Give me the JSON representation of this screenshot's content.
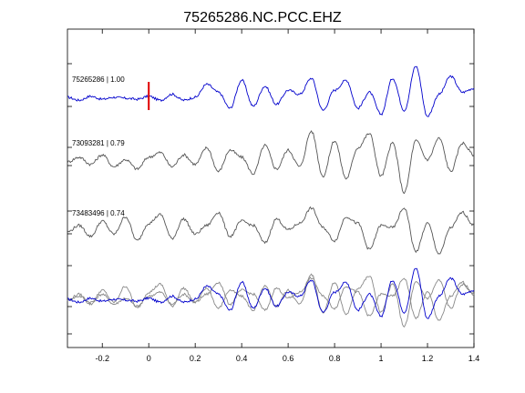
{
  "chart_data": {
    "type": "line",
    "title": "75265286.NC.PCC.EHZ",
    "xlabel": "",
    "ylabel": "",
    "xlim": [
      -0.35,
      1.4
    ],
    "xticks": [
      -0.2,
      0,
      0.2,
      0.4,
      0.6,
      0.8,
      1,
      1.2,
      1.4
    ],
    "xtick_labels": [
      "-0.2",
      "0",
      "0.2",
      "0.4",
      "0.6",
      "0.8",
      "1",
      "1.2",
      "1.4"
    ],
    "grid": false,
    "pick_marker": {
      "x": 0,
      "color": "#e00000"
    },
    "colors": {
      "primary": "#0000cc",
      "secondary": "#555555",
      "overlay": "#888888"
    },
    "traces": [
      {
        "label": "75265286 | 1.00",
        "color": "#0000cc",
        "x": [
          -0.35,
          -0.3,
          -0.25,
          -0.2,
          -0.15,
          -0.1,
          -0.05,
          0,
          0.05,
          0.1,
          0.15,
          0.2,
          0.25,
          0.3,
          0.35,
          0.4,
          0.45,
          0.5,
          0.55,
          0.6,
          0.65,
          0.7,
          0.75,
          0.8,
          0.85,
          0.9,
          0.95,
          1,
          1.05,
          1.1,
          1.15,
          1.2,
          1.25,
          1.3,
          1.35,
          1.4
        ],
        "y": [
          0.05,
          -0.1,
          0.1,
          -0.05,
          0.05,
          0,
          -0.05,
          0.1,
          -0.1,
          0.2,
          -0.1,
          0.05,
          0.7,
          0.3,
          -0.5,
          0.9,
          -0.4,
          0.6,
          -0.3,
          0.4,
          0.2,
          1.0,
          -0.6,
          0.4,
          0.9,
          -0.5,
          0.3,
          -0.8,
          1.0,
          -0.6,
          1.6,
          -0.9,
          0.2,
          1.1,
          0.3,
          0.5
        ]
      },
      {
        "label": "73093281 | 0.79",
        "color": "#555555",
        "x": [
          -0.35,
          -0.3,
          -0.25,
          -0.2,
          -0.15,
          -0.1,
          -0.05,
          0,
          0.05,
          0.1,
          0.15,
          0.2,
          0.25,
          0.3,
          0.35,
          0.4,
          0.45,
          0.5,
          0.55,
          0.6,
          0.65,
          0.7,
          0.75,
          0.8,
          0.85,
          0.9,
          0.95,
          1,
          1.05,
          1.1,
          1.15,
          1.2,
          1.25,
          1.3,
          1.35,
          1.4
        ],
        "y": [
          0.0,
          0.2,
          -0.1,
          0.3,
          -0.2,
          0.1,
          -0.3,
          0.2,
          0.4,
          -0.2,
          0.3,
          -0.1,
          0.6,
          -0.4,
          0.5,
          0.2,
          -0.5,
          0.7,
          -0.3,
          0.5,
          -0.2,
          1.3,
          -0.6,
          0.9,
          -0.7,
          0.6,
          1.2,
          -0.6,
          0.8,
          -1.3,
          0.9,
          0.1,
          1.0,
          -0.4,
          0.8,
          0.3
        ]
      },
      {
        "label": "73483496 | 0.74",
        "color": "#555555",
        "x": [
          -0.35,
          -0.3,
          -0.25,
          -0.2,
          -0.15,
          -0.1,
          -0.05,
          0,
          0.05,
          0.1,
          0.15,
          0.2,
          0.25,
          0.3,
          0.35,
          0.4,
          0.45,
          0.5,
          0.55,
          0.6,
          0.65,
          0.7,
          0.75,
          0.8,
          0.85,
          0.9,
          0.95,
          1,
          1.05,
          1.1,
          1.15,
          1.2,
          1.25,
          1.3,
          1.35,
          1.4
        ],
        "y": [
          0.0,
          0.3,
          -0.2,
          0.5,
          -0.1,
          0.7,
          -0.4,
          0.4,
          0.8,
          -0.3,
          0.6,
          -0.1,
          0.3,
          0.9,
          -0.2,
          0.5,
          0.3,
          -0.5,
          0.6,
          0.1,
          0.4,
          1.1,
          0.2,
          -0.4,
          0.7,
          0.4,
          -0.8,
          0.3,
          0.2,
          1.1,
          -0.9,
          0.4,
          -1.0,
          0.2,
          0.9,
          0.3
        ]
      }
    ]
  }
}
